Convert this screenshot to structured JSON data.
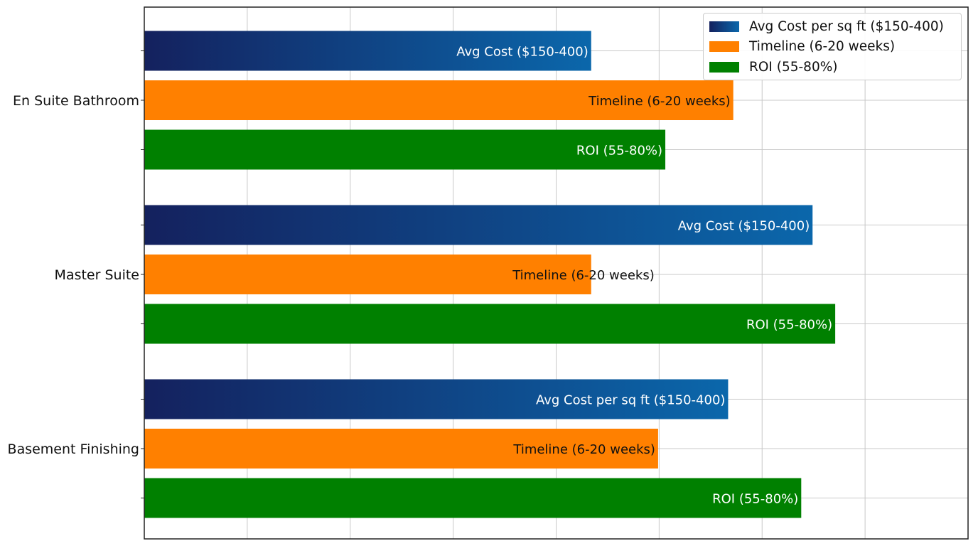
{
  "chart_data": {
    "type": "bar",
    "orientation": "horizontal",
    "categories": [
      "En Suite Bathroom",
      "Master Suite",
      "Basement Finishing"
    ],
    "series": [
      {
        "name": "Avg Cost per sq ft ($150-400)",
        "color": "#0b63a8",
        "gradient": [
          "#14215e",
          "#0b67ab"
        ],
        "values": [
          4.34,
          6.49,
          5.67
        ],
        "bar_labels": [
          "Avg Cost ($150-400)",
          "Avg Cost ($150-400)",
          "Avg Cost per sq ft ($150-400)"
        ]
      },
      {
        "name": "Timeline (6-20 weeks)",
        "color": "#ff8000",
        "values": [
          5.72,
          4.34,
          4.99
        ],
        "bar_labels": [
          "Timeline (6-20 weeks)",
          "Timeline (6-20 weeks)",
          "Timeline (6-20 weeks)"
        ]
      },
      {
        "name": "ROI (55-80%)",
        "color": "#008000",
        "values": [
          5.06,
          6.71,
          6.38
        ],
        "bar_labels": [
          "ROI (55-80%)",
          "ROI (55-80%)",
          "ROI (55-80%)"
        ]
      }
    ],
    "title": "",
    "xlabel": "",
    "ylabel": "",
    "xlim": [
      0,
      8
    ],
    "x_tick_labels_shown": false,
    "grid": true,
    "legend_position": "top-right"
  }
}
